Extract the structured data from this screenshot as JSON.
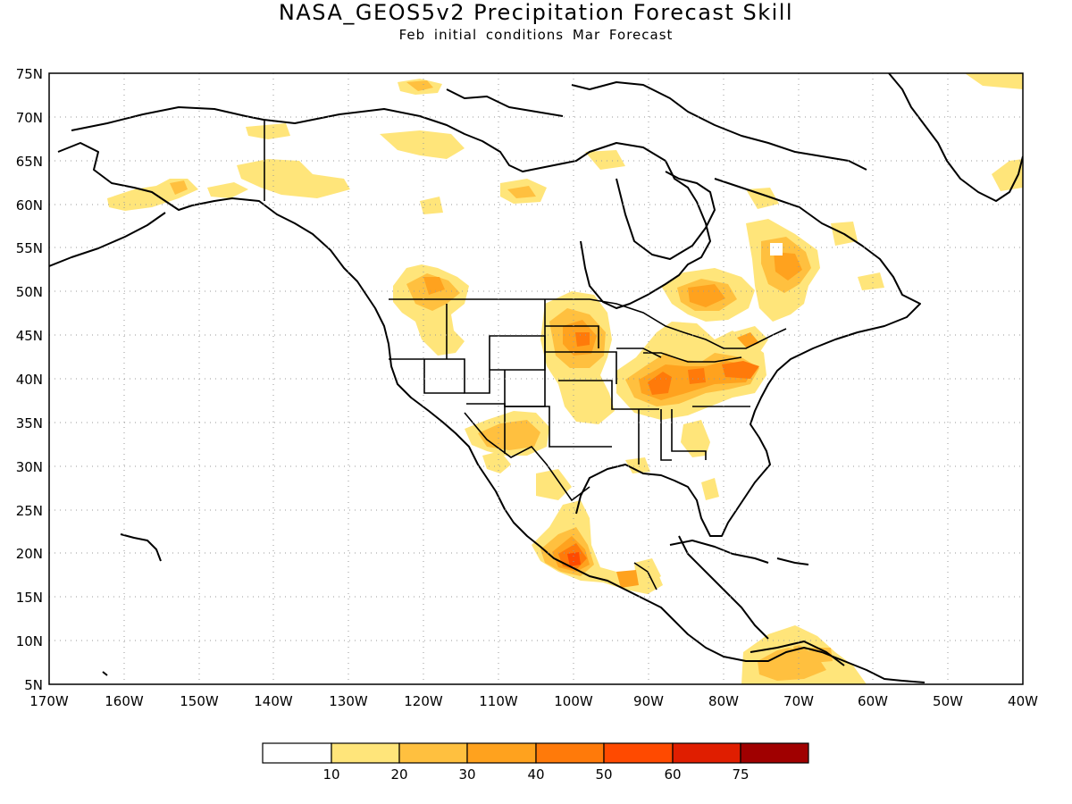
{
  "title": "NASA_GEOS5v2 Precipitation Forecast Skill",
  "subtitle": "Feb initial conditions  Mar Forecast",
  "map": {
    "lat_labels": [
      "75N",
      "70N",
      "65N",
      "60N",
      "55N",
      "50N",
      "45N",
      "40N",
      "35N",
      "30N",
      "25N",
      "20N",
      "15N",
      "10N",
      "5N"
    ],
    "lon_labels": [
      "170W",
      "160W",
      "150W",
      "140W",
      "130W",
      "120W",
      "110W",
      "100W",
      "90W",
      "80W",
      "70W",
      "60W",
      "50W",
      "40W"
    ],
    "lat_range": [
      5,
      75
    ],
    "lon_range": [
      -170,
      -40
    ],
    "grid": "dotted, every 5° latitude and 10° longitude"
  },
  "colorbar": {
    "colors": [
      "#ffffff",
      "#ffe57a",
      "#ffc03f",
      "#ffa21e",
      "#ff7a0a",
      "#ff4a00",
      "#e01e00",
      "#a00000"
    ],
    "labels": [
      "10",
      "20",
      "30",
      "40",
      "50",
      "60",
      "75"
    ]
  }
}
